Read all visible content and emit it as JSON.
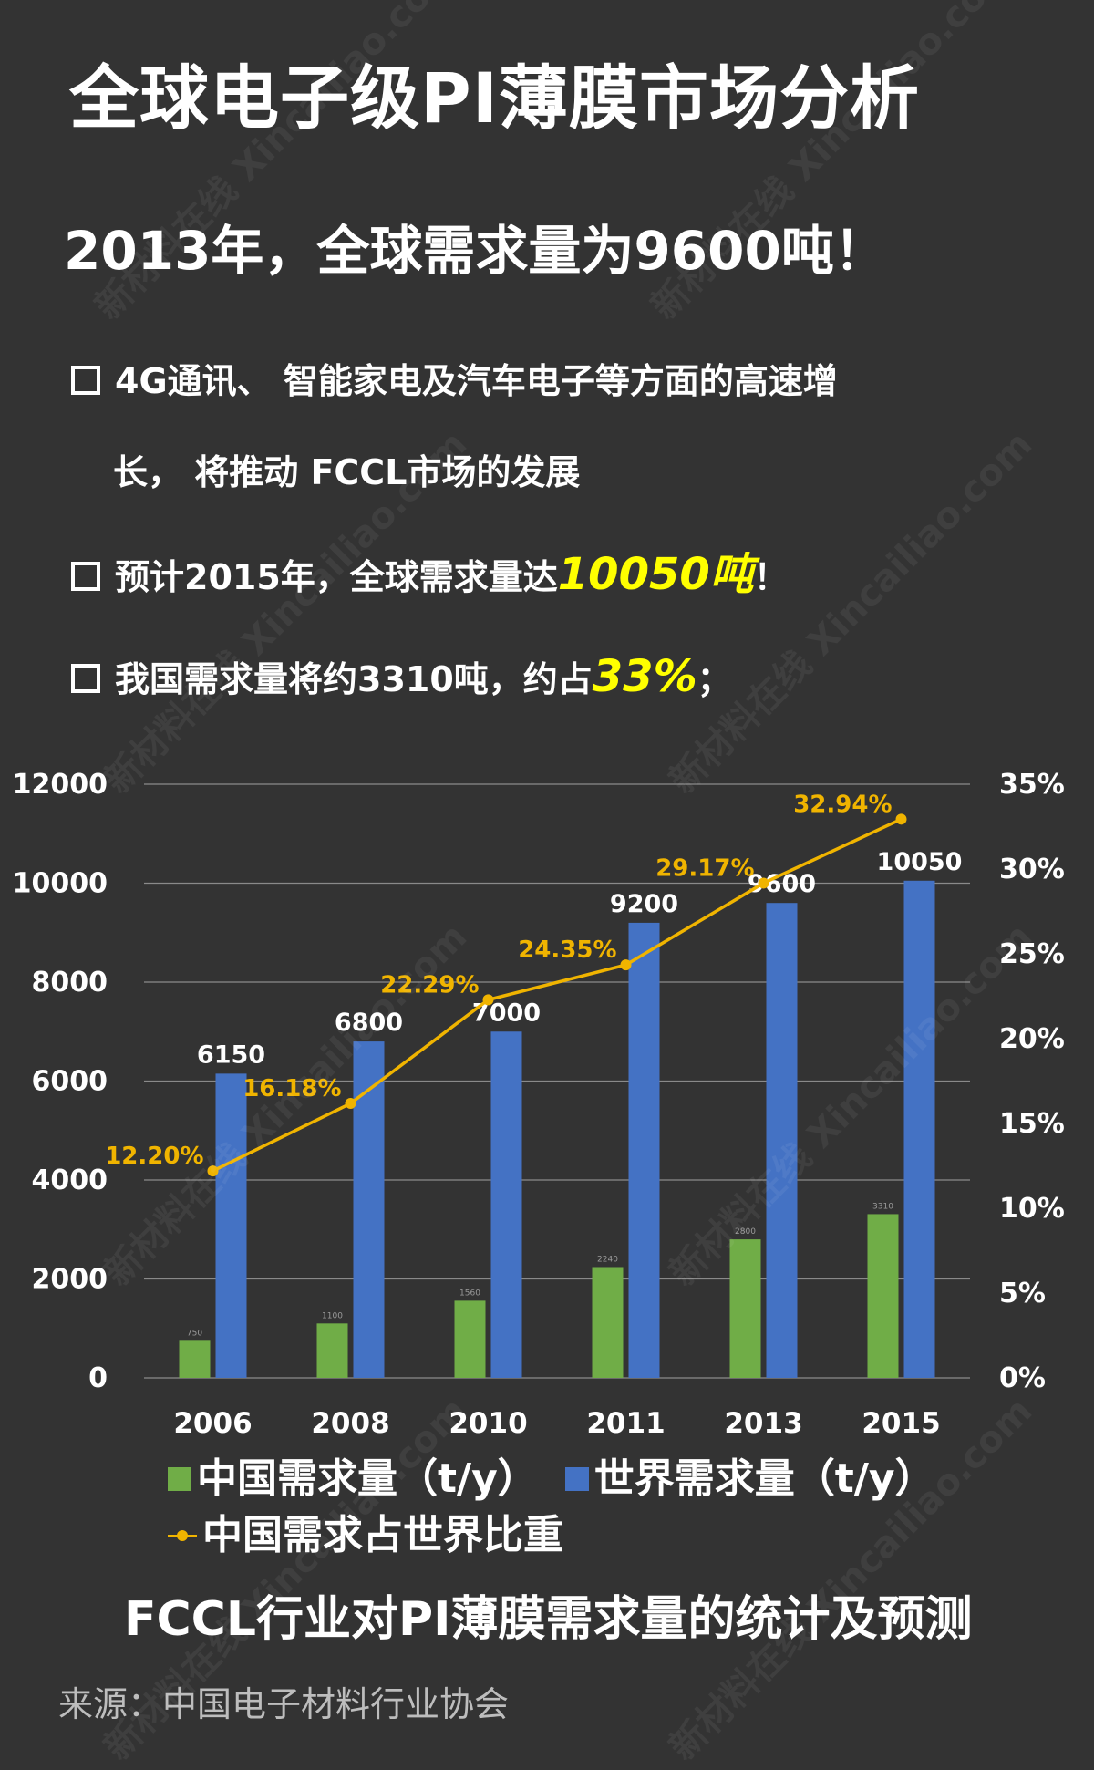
{
  "title": "全球电子级PI薄膜市场分析",
  "headline": "2013年，全球需求量为9600吨！",
  "bullets": {
    "b1_line1": "4G通讯、 智能家电及汽车电子等方面的高速增",
    "b1_line2": "长， 将推动 FCCL市场的发展",
    "b2_pre": "预计2015年，全球需求量达",
    "b2_highlight": "10050吨",
    "b2_post": "！",
    "b3_pre": "我国需求量将约3310吨，约占",
    "b3_highlight": "33%",
    "b3_post": "；"
  },
  "watermark": "新材料在线 Xincailiao.com",
  "colors": {
    "background": "#333333",
    "china_bar": "#70ad47",
    "world_bar": "#4472c4",
    "ratio_line": "#f0b400",
    "highlight": "#ffff00"
  },
  "chart_data": {
    "type": "bar",
    "categories": [
      "2006",
      "2008",
      "2010",
      "2011",
      "2013",
      "2015"
    ],
    "series": [
      {
        "name": "中国需求量（t/y）",
        "type": "bar",
        "axis": "left",
        "values": [
          750,
          1100,
          1560,
          2240,
          2800,
          3310
        ],
        "labels": [
          "750",
          "1100",
          "1560",
          "2240",
          "2800",
          "3310"
        ]
      },
      {
        "name": "世界需求量（t/y）",
        "type": "bar",
        "axis": "left",
        "values": [
          6150,
          6800,
          7000,
          9200,
          9600,
          10050
        ],
        "labels": [
          "6150",
          "6800",
          "7000",
          "9200",
          "9600",
          "10050"
        ]
      },
      {
        "name": "中国需求占世界比重",
        "type": "line",
        "axis": "right",
        "values": [
          12.2,
          16.18,
          22.29,
          24.35,
          29.17,
          32.94
        ],
        "labels": [
          "12.20%",
          "16.18%",
          "22.29%",
          "24.35%",
          "29.17%",
          "32.94%"
        ]
      }
    ],
    "y_left": {
      "min": 0,
      "max": 12000,
      "ticks": [
        "0",
        "2000",
        "4000",
        "6000",
        "8000",
        "10000",
        "12000"
      ]
    },
    "y_right": {
      "min": 0,
      "max": 35,
      "ticks": [
        "0%",
        "5%",
        "10%",
        "15%",
        "20%",
        "25%",
        "30%",
        "35%"
      ]
    },
    "grid": true,
    "legend_position": "bottom",
    "caption": "FCCL行业对PI薄膜需求量的统计及预测"
  },
  "source": "来源：中国电子材料行业协会"
}
